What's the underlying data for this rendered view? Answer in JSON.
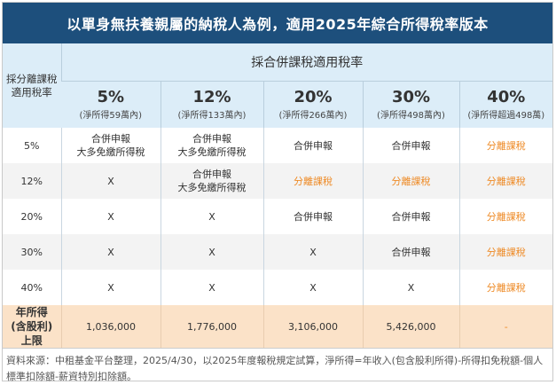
{
  "title": "以單身無扶養親屬的納稅人為例，適用2025年綜合所得稅率版本",
  "header": {
    "side_label": "採分離課稅適用稅率",
    "group_label": "採合併課稅適用稅率",
    "columns": [
      {
        "rate": "5%",
        "note": "(淨所得59萬內)"
      },
      {
        "rate": "12%",
        "note": "(淨所得133萬內)"
      },
      {
        "rate": "20%",
        "note": "(淨所得266萬內)"
      },
      {
        "rate": "30%",
        "note": "(淨所得498萬內)"
      },
      {
        "rate": "40%",
        "note": "(淨所得超過498萬)"
      }
    ]
  },
  "rows": [
    {
      "label": "5%",
      "cells": [
        "合併申報\n大多免繳所得稅",
        "合併申報\n大多免繳所得稅",
        "合併申報",
        "合併申報",
        "分離課稅"
      ]
    },
    {
      "label": "12%",
      "cells": [
        "X",
        "合併申報\n大多免繳所得稅",
        "分離課稅",
        "分離課稅",
        "分離課稅"
      ]
    },
    {
      "label": "20%",
      "cells": [
        "X",
        "X",
        "合併申報",
        "合併申報",
        "分離課稅"
      ]
    },
    {
      "label": "30%",
      "cells": [
        "X",
        "X",
        "X",
        "合併申報",
        "分離課稅"
      ]
    },
    {
      "label": "40%",
      "cells": [
        "X",
        "X",
        "X",
        "X",
        "分離課稅"
      ]
    }
  ],
  "limit_row": {
    "label": "年所得(含股利)上限",
    "cells": [
      "1,036,000",
      "1,776,000",
      "3,106,000",
      "5,426,000",
      "-"
    ]
  },
  "footnote": "資料來源：中租基金平台整理，2025/4/30，以2025年度報稅規定試算，淨所得=年收入(包含股利所得)-所得扣免稅額-個人標準扣除額-薪資特別扣除額。",
  "colors": {
    "title_bg": "#1d4f7c",
    "header_bg": "#dcedf8",
    "highlight": "#ee8a25",
    "limit_bg": "#fbe2c8"
  }
}
